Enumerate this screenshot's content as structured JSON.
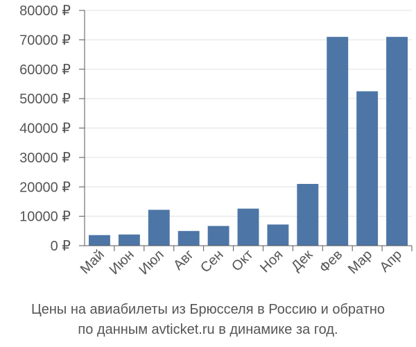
{
  "caption": {
    "line1": "Цены на авиабилеты из Брюсселя в Россию и обратно",
    "line2": "по данным avticket.ru в динамике за год."
  },
  "colors": {
    "bar": "#4d76a6",
    "grid": "#e0e0e0",
    "axis": "#555555",
    "text": "#555555"
  },
  "chart_data": {
    "type": "bar",
    "title": "",
    "xlabel": "",
    "ylabel": "",
    "categories": [
      "Май",
      "Июн",
      "Июл",
      "Авг",
      "Сен",
      "Окт",
      "Ноя",
      "Дек",
      "Фев",
      "Мар",
      "Апр"
    ],
    "values": [
      3600,
      3800,
      12200,
      5000,
      6700,
      12600,
      7200,
      21000,
      71000,
      52500,
      71000
    ],
    "ylim": [
      0,
      80000
    ],
    "yticks": [
      0,
      10000,
      20000,
      30000,
      40000,
      50000,
      60000,
      70000,
      80000
    ],
    "ytick_labels": [
      "0 ₽",
      "10000 ₽",
      "20000 ₽",
      "30000 ₽",
      "40000 ₽",
      "50000 ₽",
      "60000 ₽",
      "70000 ₽",
      "80000 ₽"
    ],
    "grid": true,
    "legend": "none"
  }
}
